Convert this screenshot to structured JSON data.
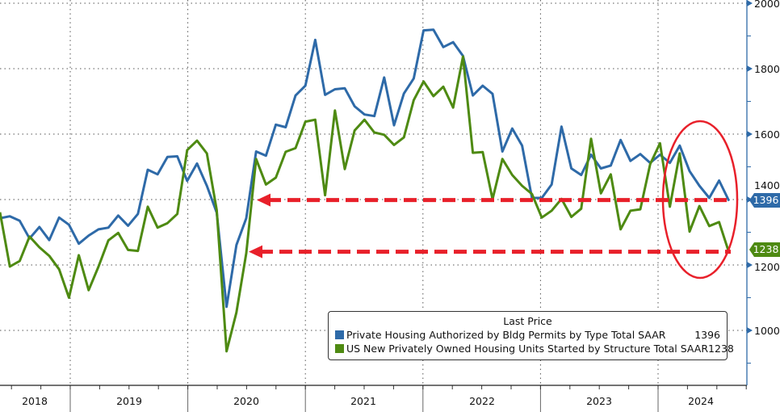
{
  "chart_data": {
    "type": "line",
    "title": "",
    "xlabel": "",
    "ylabel": "",
    "ylim": [
      850,
      2000
    ],
    "y_ticks": [
      "1000",
      "1200",
      "1400",
      "1600",
      "1800",
      "2000"
    ],
    "y_tick_values": [
      1000,
      1200,
      1400,
      1600,
      1800,
      2000
    ],
    "x_year_labels": [
      "2018",
      "2019",
      "2020",
      "2021",
      "2022",
      "2023",
      "2024"
    ],
    "x_start_month": "2018-04",
    "x_end_month": "2024-06",
    "grid": true,
    "legend_placement": "bottom-right",
    "legend_title": "Last Price",
    "series": [
      {
        "name": "Private Housing Authorized by Bldg Permits by Type Total SAAR",
        "color": "#2e6aa8",
        "last": "1396",
        "values": [
          1343,
          1349,
          1335,
          1281,
          1316,
          1276,
          1345,
          1323,
          1265,
          1290,
          1309,
          1314,
          1351,
          1320,
          1356,
          1491,
          1477,
          1530,
          1532,
          1457,
          1510,
          1442,
          1360,
          1072,
          1261,
          1343,
          1547,
          1534,
          1629,
          1621,
          1718,
          1748,
          1888,
          1720,
          1737,
          1740,
          1685,
          1660,
          1655,
          1773,
          1627,
          1724,
          1770,
          1917,
          1919,
          1866,
          1881,
          1839,
          1718,
          1748,
          1723,
          1547,
          1617,
          1565,
          1405,
          1405,
          1446,
          1623,
          1495,
          1475,
          1537,
          1495,
          1504,
          1582,
          1518,
          1539,
          1512,
          1537,
          1512,
          1565,
          1487,
          1442,
          1405,
          1458,
          1396
        ]
      },
      {
        "name": "US New Privately Owned Housing Units Started by Structure Total SAAR",
        "color": "#4e8a12",
        "last": "1238",
        "values": [
          1361,
          1195,
          1212,
          1287,
          1254,
          1228,
          1187,
          1100,
          1230,
          1123,
          1195,
          1275,
          1298,
          1246,
          1243,
          1378,
          1314,
          1328,
          1356,
          1551,
          1580,
          1541,
          1368,
          936,
          1055,
          1236,
          1524,
          1446,
          1467,
          1546,
          1557,
          1638,
          1644,
          1413,
          1672,
          1493,
          1611,
          1644,
          1605,
          1598,
          1567,
          1590,
          1704,
          1761,
          1716,
          1745,
          1681,
          1837,
          1543,
          1545,
          1401,
          1524,
          1475,
          1442,
          1417,
          1345,
          1366,
          1402,
          1347,
          1372,
          1586,
          1419,
          1477,
          1309,
          1366,
          1370,
          1508,
          1572,
          1378,
          1541,
          1302,
          1380,
          1319,
          1331,
          1238
        ]
      }
    ],
    "annotations": {
      "arrow_levels": [
        1396,
        1238
      ],
      "color": "#e8202a"
    }
  }
}
